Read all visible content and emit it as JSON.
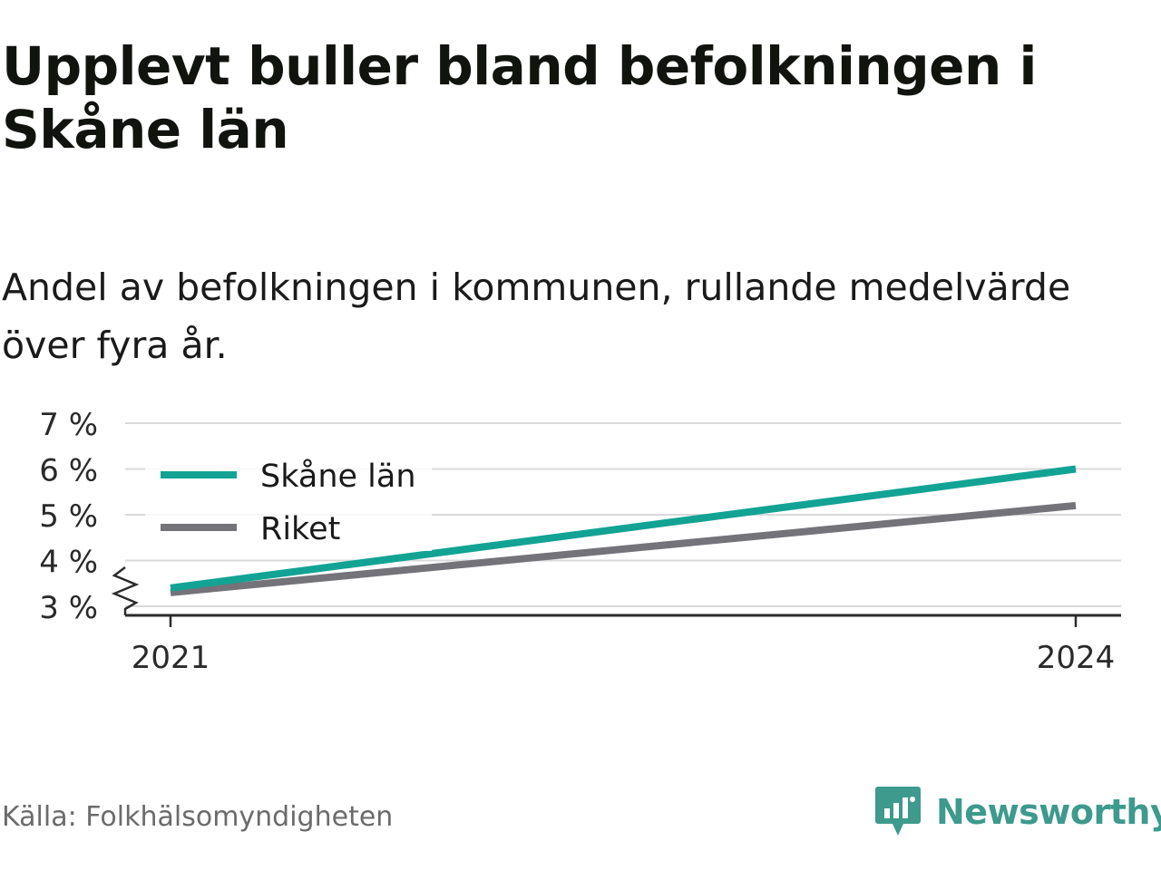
{
  "title": "Upplevt buller bland befolkningen i Skåne län",
  "subtitle": "Andel av befolkningen i kommunen, rullande medelvärde över fyra år.",
  "source": "Källa: Folkhälsomyndigheten",
  "brand": "Newsworthy",
  "colors": {
    "skane": "#12a394",
    "riket": "#74737a",
    "grid": "#d9d9d9",
    "axis": "#2b2b2b",
    "brand": "#3d9a8c"
  },
  "chart_data": {
    "type": "line",
    "x": [
      "2021",
      "2024"
    ],
    "x_ticks": [
      "2021",
      "2024"
    ],
    "y_ticks": [
      "3 %",
      "4 %",
      "5 %",
      "6 %",
      "7 %"
    ],
    "ylim": [
      3,
      7
    ],
    "y_axis_break": true,
    "legend_position": "top-left",
    "grid": true,
    "series": [
      {
        "name": "Skåne län",
        "values": [
          3.4,
          6.0
        ]
      },
      {
        "name": "Riket",
        "values": [
          3.3,
          5.2
        ]
      }
    ]
  }
}
